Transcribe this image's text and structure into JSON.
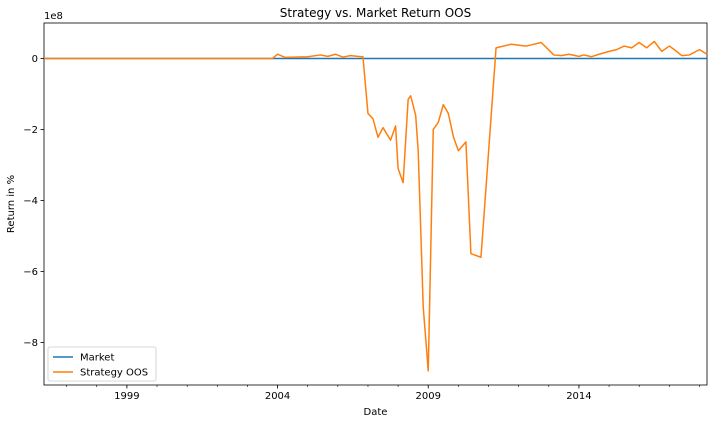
{
  "chart_data": {
    "type": "line",
    "title": "Strategy vs. Market Return OOS",
    "xlabel": "Date",
    "ylabel": "Return in %",
    "y_scale_label": "1e8",
    "y_unit": 100000000,
    "xlim": [
      "1996-04",
      "2018-04"
    ],
    "ylim": [
      -9.2,
      1.0
    ],
    "x_ticks": [
      "1999",
      "2004",
      "2009",
      "2014"
    ],
    "y_ticks": [
      0,
      -2,
      -4,
      -6,
      -8
    ],
    "y_tick_labels": [
      "0",
      "−2",
      "−4",
      "−6",
      "−8"
    ],
    "grid": false,
    "legend_position": "lower-left",
    "series": [
      {
        "name": "Market",
        "color": "#1f77b4",
        "x": [
          "1996-04",
          "2018-04"
        ],
        "y": [
          0,
          0
        ]
      },
      {
        "name": "Strategy OOS",
        "color": "#ff7f0e",
        "x": [
          "1996-04",
          "2000-01",
          "2003-11",
          "2004-01",
          "2004-04",
          "2005-01",
          "2005-06",
          "2005-09",
          "2005-12",
          "2006-03",
          "2006-06",
          "2006-09",
          "2006-11",
          "2007-01",
          "2007-03",
          "2007-05",
          "2007-07",
          "2007-10",
          "2007-12",
          "2008-01",
          "2008-03",
          "2008-05",
          "2008-06",
          "2008-08",
          "2008-09",
          "2008-11",
          "2009-01",
          "2009-03",
          "2009-05",
          "2009-07",
          "2009-09",
          "2009-11",
          "2010-01",
          "2010-04",
          "2010-06",
          "2010-10",
          "2011-04",
          "2011-10",
          "2012-04",
          "2012-10",
          "2013-03",
          "2013-06",
          "2013-09",
          "2014-01",
          "2014-03",
          "2014-06",
          "2014-09",
          "2015-01",
          "2015-04",
          "2015-07",
          "2015-10",
          "2016-01",
          "2016-04",
          "2016-07",
          "2016-10",
          "2017-01",
          "2017-03",
          "2017-06",
          "2017-09",
          "2018-01",
          "2018-04"
        ],
        "y": [
          0,
          0,
          0,
          0.12,
          0.03,
          0.05,
          0.1,
          0.06,
          0.12,
          0.04,
          0.08,
          0.06,
          0.05,
          -1.55,
          -1.7,
          -2.22,
          -1.95,
          -2.3,
          -1.9,
          -3.1,
          -3.5,
          -1.15,
          -1.05,
          -1.6,
          -2.6,
          -7.0,
          -8.8,
          -2.0,
          -1.8,
          -1.3,
          -1.55,
          -2.2,
          -2.6,
          -2.35,
          -5.5,
          -5.6,
          0.3,
          0.4,
          0.35,
          0.45,
          0.1,
          0.08,
          0.12,
          0.06,
          0.1,
          0.05,
          0.12,
          0.2,
          0.25,
          0.35,
          0.3,
          0.45,
          0.3,
          0.48,
          0.2,
          0.35,
          0.25,
          0.08,
          0.1,
          0.25,
          0.12
        ]
      }
    ]
  }
}
